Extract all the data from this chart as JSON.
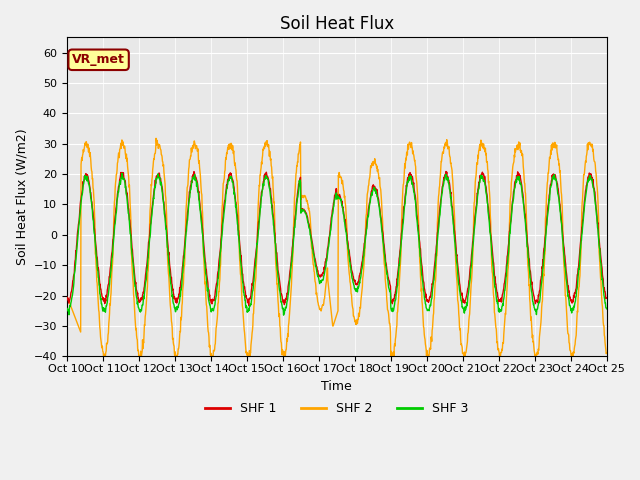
{
  "title": "Soil Heat Flux",
  "ylabel": "Soil Heat Flux (W/m2)",
  "xlabel": "Time",
  "ylim": [
    -40,
    65
  ],
  "yticks": [
    -40,
    -30,
    -20,
    -10,
    0,
    10,
    20,
    30,
    40,
    50,
    60
  ],
  "legend_labels": [
    "SHF 1",
    "SHF 2",
    "SHF 3"
  ],
  "colors": [
    "#dd0000",
    "#ffa500",
    "#00cc00"
  ],
  "fig_bg_color": "#f0f0f0",
  "plot_bg_color": "#e8e8e8",
  "annotation_text": "VR_met",
  "annotation_box_color": "#ffff99",
  "annotation_border_color": "#8B0000",
  "x_tick_labels": [
    "Oct 10",
    "Oct 11",
    "Oct 12",
    "Oct 13",
    "Oct 14",
    "Oct 15",
    "Oct 16",
    "Oct 17",
    "Oct 18",
    "Oct 19",
    "Oct 20",
    "Oct 21",
    "Oct 22",
    "Oct 23",
    "Oct 24",
    "Oct 25"
  ],
  "n_days": 15,
  "n_points_per_day": 96,
  "title_fontsize": 12,
  "axis_fontsize": 9,
  "tick_fontsize": 8,
  "line_width": 1.0
}
